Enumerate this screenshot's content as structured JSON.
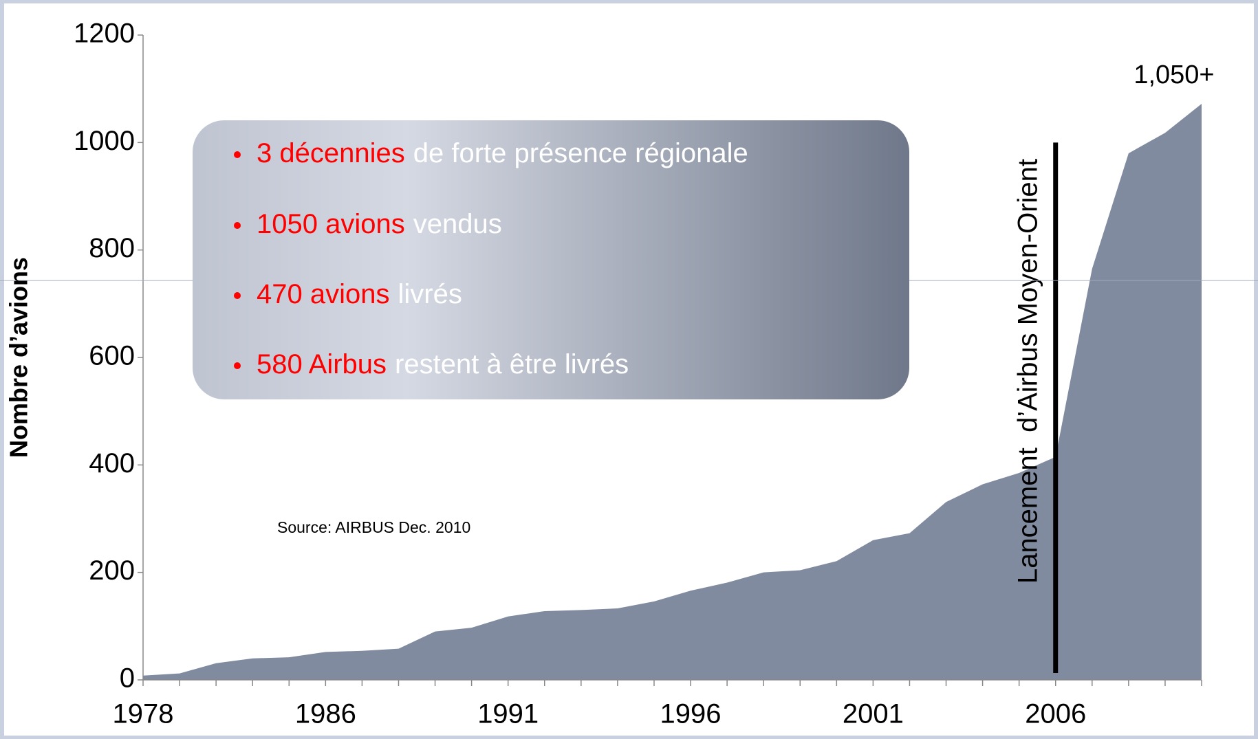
{
  "chart_data": {
    "type": "area",
    "y_label": "Nombre d’avions",
    "categories": [
      "1978",
      null,
      null,
      null,
      null,
      "1986",
      null,
      null,
      null,
      null,
      "1991",
      null,
      null,
      null,
      null,
      "1996",
      null,
      null,
      null,
      null,
      "2001",
      null,
      null,
      null,
      null,
      "2006",
      null,
      null,
      null,
      null
    ],
    "values": [
      8,
      12,
      31,
      40,
      42,
      52,
      54,
      58,
      90,
      97,
      118,
      128,
      130,
      133,
      146,
      166,
      181,
      200,
      204,
      221,
      260,
      273,
      331,
      364,
      385,
      415,
      765,
      980,
      1018,
      1072
    ],
    "color": "#808ba0",
    "ylim": [
      0,
      1200
    ],
    "yticks": [
      0,
      200,
      400,
      600,
      800,
      1000,
      1200
    ],
    "end_label": "1,050+",
    "event_label": "Lancement  d’Airbus Moyen-Orient",
    "source": "Source: AIRBUS Dec. 2010",
    "callout": [
      {
        "highlight": "3 décennies",
        "text": "de forte présence régionale"
      },
      {
        "highlight": "1050 avions",
        "text": "vendus"
      },
      {
        "highlight": "470 avions",
        "text": "livrés"
      },
      {
        "highlight": "580 Airbus",
        "text": "restent à être livrés"
      }
    ]
  }
}
